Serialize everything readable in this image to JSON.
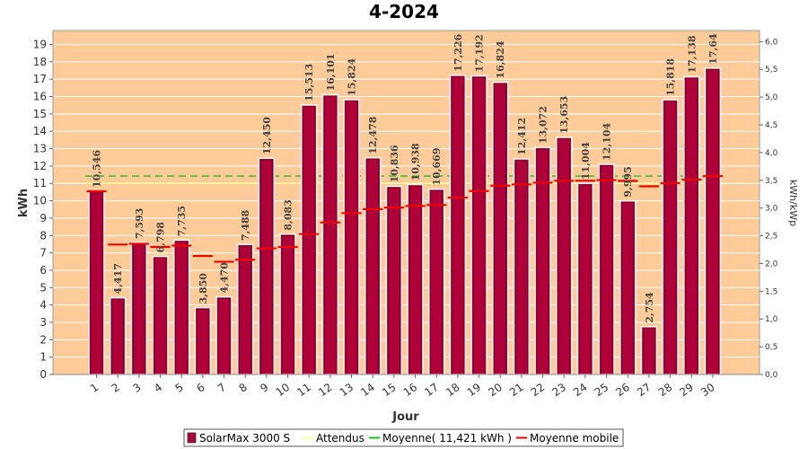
{
  "chart_data": {
    "type": "bar",
    "title": "4-2024",
    "xlabel": "Jour",
    "ylabel": "kWh",
    "ylabel_right": "kWh/kWp",
    "ylim": [
      0,
      19.8
    ],
    "ylim_right": [
      0,
      6.2
    ],
    "yticks": [
      0,
      1,
      2,
      3,
      4,
      5,
      6,
      7,
      8,
      9,
      10,
      11,
      12,
      13,
      14,
      15,
      16,
      17,
      18,
      19
    ],
    "yticks_right": [
      "0,0",
      "0,5",
      "1,0",
      "1,5",
      "2,0",
      "2,5",
      "3,0",
      "3,5",
      "4,0",
      "4,5",
      "5,0",
      "5,5",
      "6,0"
    ],
    "categories": [
      "1",
      "2",
      "3",
      "4",
      "5",
      "6",
      "7",
      "8",
      "9",
      "10",
      "11",
      "12",
      "13",
      "14",
      "15",
      "16",
      "17",
      "18",
      "19",
      "20",
      "21",
      "22",
      "23",
      "24",
      "25",
      "26",
      "27",
      "28",
      "29",
      "30"
    ],
    "series": [
      {
        "name": "SolarMax 3000 S",
        "values": [
          10.546,
          4.417,
          7.593,
          6.798,
          7.735,
          3.85,
          4.47,
          7.488,
          12.45,
          8.083,
          15.513,
          16.101,
          15.824,
          12.478,
          10.836,
          10.938,
          10.669,
          17.226,
          17.192,
          16.824,
          12.412,
          13.072,
          13.653,
          11.004,
          12.104,
          9.995,
          2.754,
          15.818,
          17.138,
          17.64
        ],
        "labels": [
          "10,546",
          "4,417",
          "7,593",
          "6,798",
          "7,735",
          "3,850",
          "4,470",
          "7,488",
          "12,450",
          "8,083",
          "15,513",
          "16,101",
          "15,824",
          "12,478",
          "10,836",
          "10,938",
          "10,669",
          "17,226",
          "17,192",
          "16,824",
          "12,412",
          "13,072",
          "13,653",
          "11,004",
          "12,104",
          "9,995",
          "2,754",
          "15,818",
          "17,138",
          "17,64"
        ],
        "color": "#b0003a"
      },
      {
        "name": "Attendus",
        "value": 11.0,
        "color": "#ffff99"
      },
      {
        "name": "Moyenne( 11,421 kWh )",
        "value": 11.421,
        "color": "#22bb22"
      },
      {
        "name": "Moyenne mobile",
        "values": [
          10.546,
          7.48,
          7.52,
          7.34,
          7.42,
          6.82,
          6.49,
          6.61,
          7.26,
          7.34,
          8.08,
          8.75,
          9.29,
          9.52,
          9.61,
          9.7,
          9.76,
          10.18,
          10.56,
          10.87,
          10.94,
          11.04,
          11.15,
          11.15,
          11.19,
          11.14,
          10.83,
          11.01,
          11.22,
          11.42
        ],
        "color": "#ee0000"
      }
    ],
    "grid": true,
    "legend_position": "bottom"
  },
  "legend": [
    {
      "label": "SolarMax 3000 S",
      "color": "#b0003a",
      "kind": "box"
    },
    {
      "label": "Attendus",
      "color": "#ffff99",
      "kind": "line"
    },
    {
      "label": "Moyenne( 11,421 kWh )",
      "color": "#22bb22",
      "kind": "line"
    },
    {
      "label": "Moyenne mobile",
      "color": "#ee0000",
      "kind": "line"
    }
  ],
  "colors": {
    "plot_background": "#ffcc99",
    "bar_fill": "#b0003a",
    "bar_edge": "#7a0028"
  }
}
